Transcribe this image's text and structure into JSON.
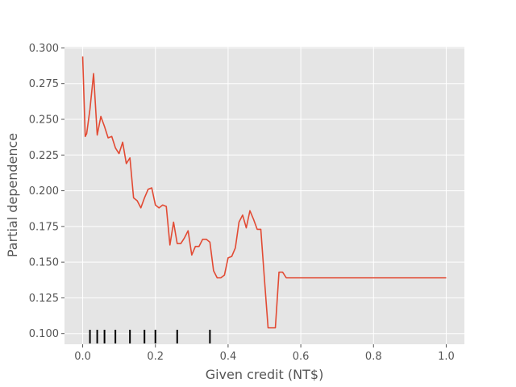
{
  "chart_data": {
    "type": "line",
    "title": "",
    "xlabel": "Given credit (NT$)",
    "ylabel": "Partial dependence",
    "xlim": [
      -0.05,
      1.05
    ],
    "ylim": [
      0.0925,
      0.3008
    ],
    "x_ticks": [
      0.0,
      0.2,
      0.4,
      0.6,
      0.8,
      1.0
    ],
    "x_tick_labels": [
      "0.0",
      "0.2",
      "0.4",
      "0.6",
      "0.8",
      "1.0"
    ],
    "y_ticks": [
      0.1,
      0.125,
      0.15,
      0.175,
      0.2,
      0.225,
      0.25,
      0.275,
      0.3
    ],
    "y_tick_labels": [
      "0.100",
      "0.125",
      "0.150",
      "0.175",
      "0.200",
      "0.225",
      "0.250",
      "0.275",
      "0.300"
    ],
    "grid": true,
    "legend": "none",
    "colors": {
      "background": "#e5e5e5",
      "grid": "#ffffff",
      "line": "#e24a33",
      "rug": "#000000",
      "text": "#555555"
    },
    "series": [
      {
        "x": [
          0.0,
          0.007,
          0.011,
          0.02,
          0.03,
          0.04,
          0.05,
          0.06,
          0.07,
          0.08,
          0.09,
          0.1,
          0.11,
          0.12,
          0.13,
          0.14,
          0.15,
          0.16,
          0.17,
          0.18,
          0.19,
          0.2,
          0.21,
          0.22,
          0.23,
          0.24,
          0.25,
          0.26,
          0.27,
          0.28,
          0.29,
          0.3,
          0.31,
          0.32,
          0.33,
          0.34,
          0.35,
          0.36,
          0.37,
          0.38,
          0.39,
          0.4,
          0.41,
          0.42,
          0.43,
          0.44,
          0.45,
          0.46,
          0.47,
          0.48,
          0.49,
          0.5,
          0.51,
          0.52,
          0.53,
          0.54,
          0.55,
          0.56,
          0.57,
          0.6,
          0.7,
          0.8,
          0.9,
          1.0
        ],
        "y": [
          0.294,
          0.238,
          0.24,
          0.257,
          0.282,
          0.239,
          0.252,
          0.245,
          0.237,
          0.238,
          0.23,
          0.226,
          0.234,
          0.219,
          0.223,
          0.195,
          0.193,
          0.188,
          0.195,
          0.201,
          0.202,
          0.19,
          0.188,
          0.19,
          0.189,
          0.162,
          0.178,
          0.163,
          0.163,
          0.167,
          0.172,
          0.155,
          0.161,
          0.161,
          0.166,
          0.166,
          0.164,
          0.144,
          0.139,
          0.139,
          0.141,
          0.153,
          0.154,
          0.16,
          0.178,
          0.183,
          0.174,
          0.186,
          0.18,
          0.173,
          0.173,
          0.138,
          0.104,
          0.104,
          0.104,
          0.143,
          0.143,
          0.139,
          0.139,
          0.139,
          0.139,
          0.139,
          0.139,
          0.139
        ]
      }
    ],
    "rug": [
      0.02,
      0.04,
      0.06,
      0.09,
      0.13,
      0.17,
      0.2,
      0.26,
      0.35
    ]
  }
}
